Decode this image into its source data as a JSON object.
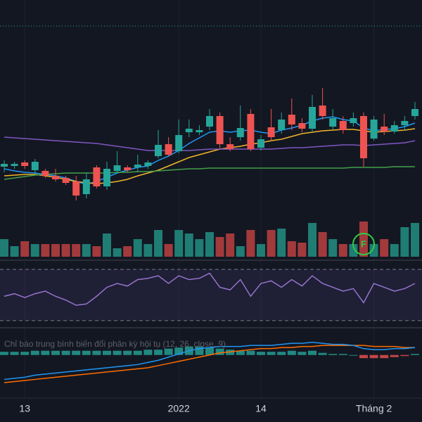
{
  "chart_data": [
    {
      "type": "candlestick",
      "categories": [
        null,
        null,
        "13",
        null,
        null,
        null,
        null,
        null,
        null,
        null,
        null,
        null,
        null,
        null,
        null,
        null,
        null,
        "2022",
        null,
        null,
        null,
        null,
        null,
        null,
        null,
        "14",
        null,
        null,
        null,
        null,
        null,
        null,
        null,
        null,
        null,
        null,
        "Tháng 2",
        null,
        null,
        null,
        null
      ],
      "open": [
        73,
        74,
        79,
        68,
        67,
        60,
        57,
        52,
        34,
        72,
        45,
        67,
        72,
        72,
        74,
        88,
        105,
        95,
        122,
        122,
        130,
        145,
        105,
        115,
        148,
        100,
        129,
        125,
        147,
        135,
        127,
        160,
        130,
        138,
        135,
        145,
        113,
        130,
        123,
        132,
        145
      ],
      "high": [
        82,
        80,
        82,
        84,
        70,
        70,
        60,
        60,
        65,
        75,
        80,
        95,
        75,
        90,
        82,
        125,
        115,
        140,
        140,
        132,
        155,
        150,
        115,
        160,
        155,
        118,
        155,
        150,
        170,
        142,
        175,
        185,
        155,
        145,
        150,
        150,
        145,
        148,
        138,
        145,
        165
      ],
      "low": [
        65,
        70,
        70,
        64,
        57,
        52,
        47,
        25,
        28,
        42,
        40,
        65,
        65,
        65,
        70,
        85,
        88,
        92,
        115,
        118,
        125,
        98,
        95,
        110,
        95,
        96,
        110,
        120,
        125,
        122,
        122,
        140,
        125,
        120,
        130,
        73,
        110,
        118,
        120,
        125,
        140
      ],
      "close": [
        77,
        77,
        74,
        80,
        60,
        55,
        50,
        32,
        55,
        45,
        70,
        75,
        68,
        76,
        79,
        104,
        90,
        118,
        127,
        125,
        145,
        105,
        98,
        128,
        98,
        112,
        115,
        140,
        133,
        127,
        158,
        145,
        142,
        125,
        142,
        85,
        140,
        123,
        132,
        138,
        155
      ],
      "up_color": "#26a69a",
      "down_color": "#ef5350",
      "ylim": [
        0,
        310
      ],
      "series": [
        {
          "color": "#2196f3",
          "values": [
            70,
            67,
            65,
            64,
            62,
            60,
            57,
            52,
            48,
            52,
            58,
            64,
            68,
            72,
            74,
            82,
            88,
            96,
            106,
            114,
            122,
            124,
            122,
            124,
            125,
            122,
            120,
            125,
            128,
            132,
            138,
            142,
            144,
            140,
            138,
            128,
            124,
            126,
            127,
            130,
            135
          ]
        },
        {
          "color": "#f0b429",
          "values": [
            60,
            61,
            62,
            62,
            60,
            58,
            55,
            52,
            50,
            49,
            50,
            52,
            55,
            60,
            64,
            68,
            74,
            80,
            86,
            90,
            94,
            98,
            100,
            102,
            105,
            107,
            110,
            112,
            116,
            120,
            122,
            124,
            125,
            126,
            126,
            124,
            122,
            123,
            124,
            125,
            127
          ]
        },
        {
          "color": "#7e57c2",
          "values": [
            115,
            114,
            113,
            112,
            111,
            110,
            109,
            108,
            107,
            106,
            104,
            102,
            100,
            98,
            96,
            96,
            96,
            96,
            96,
            97,
            98,
            98,
            98,
            98,
            98,
            98,
            98,
            99,
            100,
            100,
            101,
            102,
            103,
            104,
            104,
            103,
            104,
            105,
            106,
            107,
            110
          ]
        },
        {
          "color": "#43a047",
          "values": [
            55,
            57,
            59,
            61,
            62,
            63,
            64,
            64,
            64,
            64,
            64,
            65,
            65,
            66,
            66,
            67,
            68,
            69,
            70,
            70,
            71,
            71,
            71,
            71,
            71,
            71,
            71,
            71,
            71,
            71,
            71,
            71,
            71,
            71,
            72,
            72,
            72,
            72,
            73,
            73,
            73
          ]
        }
      ]
    },
    {
      "type": "volume",
      "values": [
        25,
        15,
        22,
        18,
        18,
        18,
        18,
        18,
        18,
        15,
        33,
        12,
        15,
        25,
        18,
        38,
        18,
        38,
        33,
        25,
        35,
        28,
        33,
        15,
        38,
        18,
        38,
        40,
        22,
        20,
        48,
        35,
        25,
        18,
        18,
        50,
        18,
        25,
        18,
        42,
        48
      ],
      "up_color": "#1f7d74",
      "down_color": "#a23a3c",
      "ylim": [
        0,
        60
      ],
      "annotations": [
        {
          "text": "F",
          "x": 35,
          "color": "#2ecc40"
        }
      ]
    },
    {
      "type": "line",
      "values": [
        49,
        51,
        48,
        51,
        53,
        49,
        46,
        42,
        43,
        49,
        56,
        59,
        57,
        62,
        63,
        65,
        59,
        65,
        62,
        63,
        67,
        56,
        54,
        62,
        49,
        59,
        61,
        56,
        62,
        57,
        65,
        59,
        56,
        53,
        55,
        44,
        59,
        56,
        53,
        55,
        59
      ],
      "color": "#9575cd",
      "ylim": [
        25,
        76
      ],
      "bands": [
        70,
        30
      ]
    },
    {
      "type": "macd",
      "title": "Chỉ báo trung bình biến đổi phân kỳ hội tụ (12, 26, close, 9)",
      "macd": [
        -23,
        -22,
        -21,
        -19,
        -18,
        -17,
        -16,
        -15,
        -14,
        -13,
        -12,
        -11,
        -10,
        -9,
        -7,
        -5,
        -2,
        1,
        4,
        6,
        7,
        8,
        8,
        8,
        9,
        9,
        9,
        10,
        11,
        11,
        12,
        11,
        10,
        10,
        9,
        6,
        5,
        5,
        6,
        6,
        7
      ],
      "signal": [
        -26,
        -25,
        -24,
        -23,
        -22,
        -21,
        -20,
        -19,
        -18,
        -17,
        -16,
        -15,
        -14,
        -13,
        -12,
        -10,
        -8,
        -6,
        -4,
        -2,
        0,
        2,
        3,
        4,
        5,
        6,
        6,
        7,
        7,
        8,
        8,
        9,
        9,
        9,
        9,
        9,
        8,
        8,
        8,
        7,
        7
      ],
      "histogram": [
        3,
        3,
        3,
        4,
        4,
        4,
        4,
        4,
        4,
        4,
        4,
        4,
        4,
        4,
        5,
        5,
        6,
        7,
        8,
        8,
        7,
        6,
        5,
        4,
        4,
        3,
        3,
        3,
        4,
        3,
        4,
        2,
        1,
        1,
        0,
        -3,
        -3,
        -3,
        -2,
        -1,
        1
      ],
      "macd_color": "#2196f3",
      "signal_color": "#ff6d00",
      "up_color": "#26a69a",
      "down_color": "#ef5350",
      "ylim": [
        -30,
        25
      ]
    }
  ]
}
